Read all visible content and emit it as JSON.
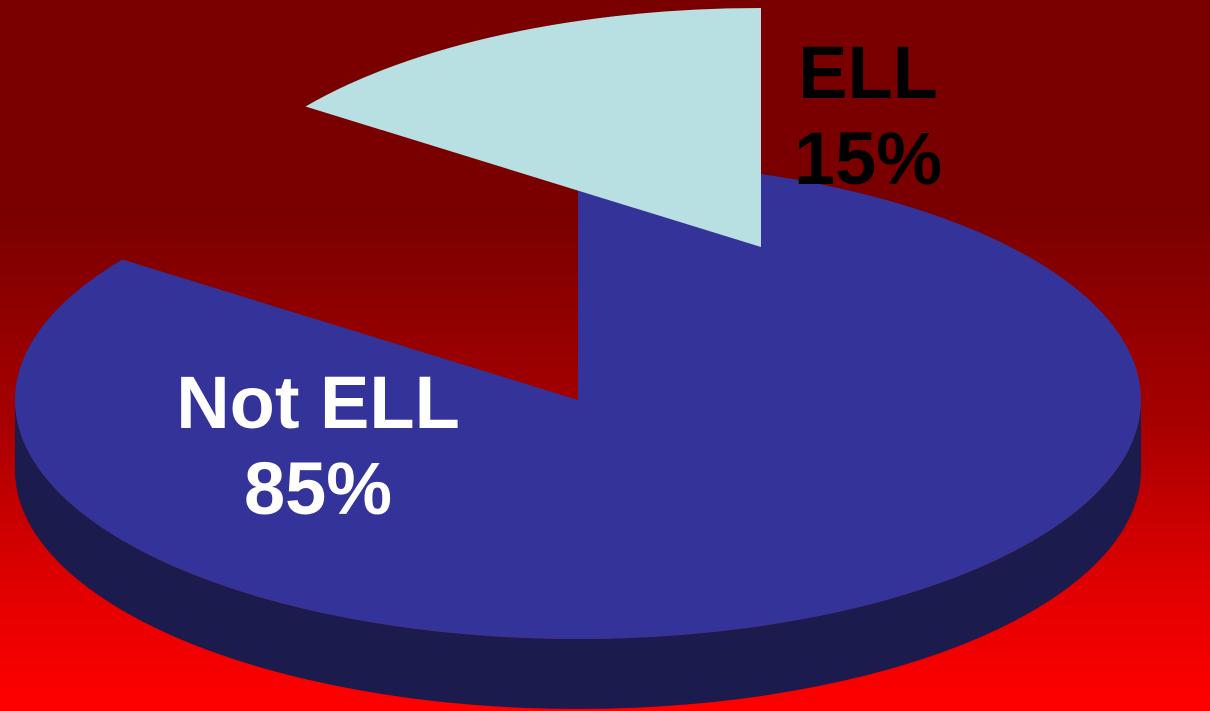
{
  "chart_data": {
    "type": "pie",
    "style": "3d-exploded",
    "slices": [
      {
        "label": "Not ELL",
        "value": 85,
        "value_label": "85%",
        "color": "#333399",
        "side_color": "#1c1b4d",
        "label_color": "#ffffff"
      },
      {
        "label": "ELL",
        "value": 15,
        "value_label": "15%",
        "color": "#b8e0e2",
        "side_color": "#5f7070",
        "label_color": "#000000"
      }
    ],
    "start_angle_deg": -90,
    "legend": "none"
  }
}
